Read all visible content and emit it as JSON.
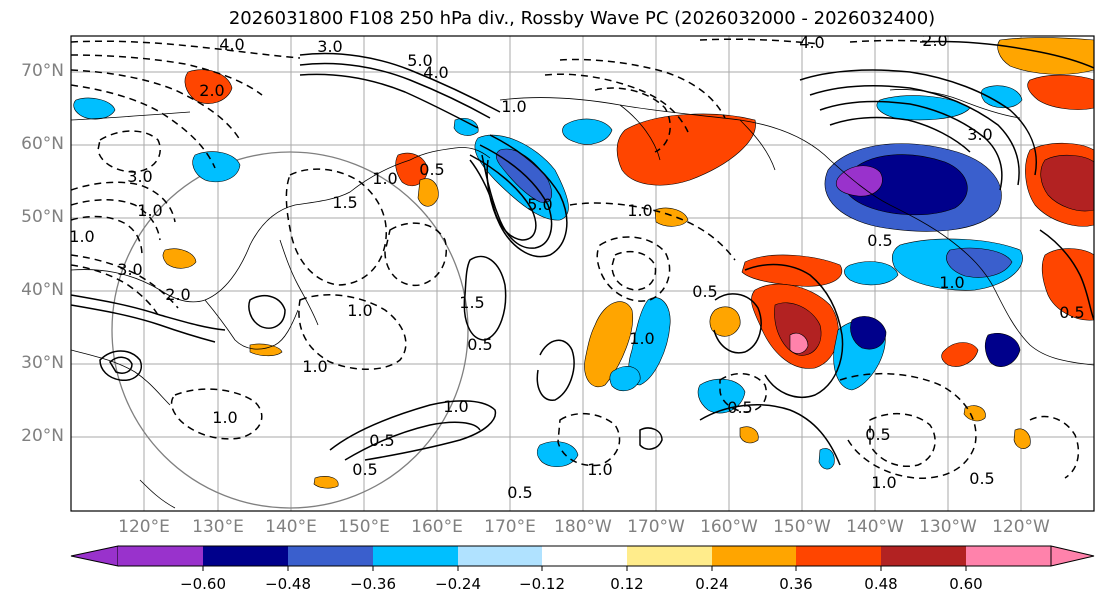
{
  "title": "2026031800 F108 250 hPa div., Rossby Wave PC (2026032000 - 2026032400)",
  "map": {
    "lat_ticks": [
      {
        "value": 70,
        "label": "70°N"
      },
      {
        "value": 60,
        "label": "60°N"
      },
      {
        "value": 50,
        "label": "50°N"
      },
      {
        "value": 40,
        "label": "40°N"
      },
      {
        "value": 30,
        "label": "30°N"
      },
      {
        "value": 20,
        "label": "20°N"
      }
    ],
    "lon_ticks": [
      "120°E",
      "130°E",
      "140°E",
      "150°E",
      "160°E",
      "170°E",
      "180°W",
      "170°W",
      "160°W",
      "150°W",
      "140°W",
      "130°W",
      "120°W"
    ],
    "contour_labels": [
      "4.0",
      "3.0",
      "5.0",
      "4.0",
      "2.0",
      "1.0",
      "3.0",
      "1.0",
      "1.5",
      "1.0",
      "0.5",
      "1.0",
      "5.0",
      "1.0",
      "0.5",
      "1.5",
      "1.0",
      "0.5",
      "1.0",
      "0.5",
      "1.0",
      "2.0",
      "3.0",
      "0.5",
      "1.0",
      "1.0",
      "1.0",
      "0.5",
      "4.0",
      "2.0",
      "3.0",
      "0.5",
      "1.0",
      "0.5",
      "0.5",
      "1.0",
      "0.5",
      "0.5"
    ]
  },
  "colorbar": {
    "ticks": [
      "−0.60",
      "−0.48",
      "−0.36",
      "−0.24",
      "−0.12",
      "0.12",
      "0.24",
      "0.36",
      "0.48",
      "0.60"
    ],
    "colors": [
      "#9932CC",
      "#00008B",
      "#3A5FCD",
      "#00BFFF",
      "#B0E2FF",
      "#FFFFFF",
      "#FFEC8B",
      "#FFA500",
      "#FF4500",
      "#B22222",
      "#FF82AB"
    ]
  }
}
